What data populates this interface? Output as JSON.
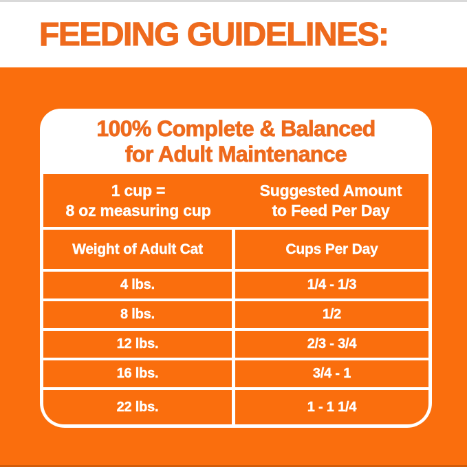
{
  "page": {
    "heading": "FEEDING GUIDELINES:"
  },
  "card": {
    "title_line1": "100% Complete & Balanced",
    "title_line2": "for Adult Maintenance",
    "header": {
      "left_line1": "1 cup =",
      "left_line2": "8 oz measuring cup",
      "right_line1": "Suggested Amount",
      "right_line2": "to Feed Per Day"
    },
    "columns": [
      "Weight of Adult Cat",
      "Cups Per Day"
    ],
    "rows": [
      {
        "weight": "4 lbs.",
        "cups": "1/4 - 1/3"
      },
      {
        "weight": "8 lbs.",
        "cups": "1/2"
      },
      {
        "weight": "12 lbs.",
        "cups": "2/3 - 3/4"
      },
      {
        "weight": "16 lbs.",
        "cups": "3/4 - 1"
      },
      {
        "weight": "22 lbs.",
        "cups": "1 - 1 1/4"
      }
    ]
  },
  "colors": {
    "brand_orange": "#fa6e0d",
    "heading_orange": "#ee6a1d",
    "table_text": "#ffffff",
    "frame_gray": "#d9d9d9"
  }
}
